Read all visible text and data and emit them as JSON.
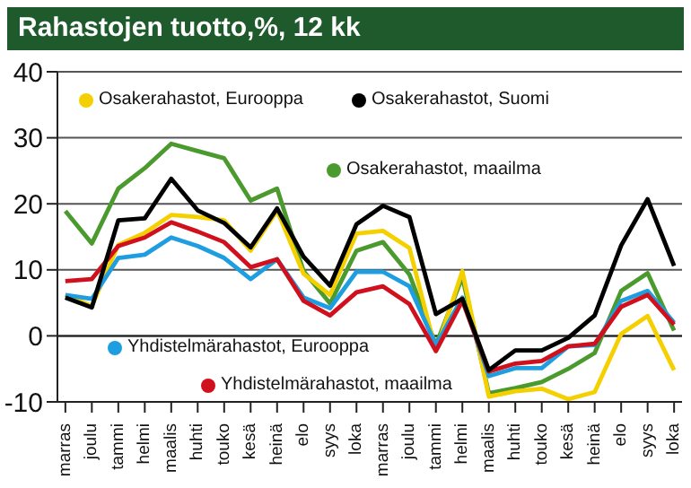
{
  "chart_data": {
    "type": "line",
    "title": "Rahastojen tuotto,%, 12 kk",
    "categories": [
      "marras",
      "joulu",
      "tammi",
      "helmi",
      "maalis",
      "huhti",
      "touko",
      "kesä",
      "heinä",
      "elo",
      "syys",
      "loka",
      "marras",
      "joulu",
      "tammi",
      "helmi",
      "maalis",
      "huhti",
      "touko",
      "kesä",
      "heinä",
      "elo",
      "syys",
      "loka"
    ],
    "series": [
      {
        "name": "Osakerahastot, Eurooppa",
        "color": "#f5d000",
        "values": [
          6.2,
          4.5,
          13.8,
          15.6,
          18.3,
          18,
          17.5,
          12.9,
          19,
          9.4,
          6.2,
          15.5,
          15.9,
          13.3,
          -2.3,
          9.8,
          -9.2,
          -8.4,
          -8,
          -9.6,
          -8.5,
          0.3,
          3,
          -5.2
        ]
      },
      {
        "name": "Osakerahastot, Suomi",
        "color": "#000000",
        "values": [
          5.8,
          4.3,
          17.5,
          17.8,
          23.8,
          19,
          17.1,
          13.4,
          19.3,
          12,
          7.6,
          16.9,
          19.7,
          18,
          3.3,
          5.6,
          -5.2,
          -2.2,
          -2.2,
          -0.3,
          3.1,
          13.7,
          20.7,
          10.6
        ]
      },
      {
        "name": "Osakerahastot, maailma",
        "color": "#4a9a2e",
        "values": [
          18.9,
          14,
          22.3,
          25.4,
          29.1,
          28,
          26.9,
          20.5,
          22.3,
          9.8,
          4.9,
          12.9,
          14.2,
          9.3,
          -1.4,
          8.9,
          -8.7,
          -7.9,
          -7,
          -5,
          -2.6,
          6.8,
          9.5,
          0.8
        ]
      },
      {
        "name": "Yhdistelmärahastot, Eurooppa",
        "color": "#1e9ee0",
        "values": [
          6.2,
          5.6,
          11.8,
          12.3,
          14.9,
          13.6,
          11.8,
          8.6,
          11.6,
          5.8,
          4.2,
          9.7,
          9.7,
          7.5,
          -1.4,
          5.8,
          -6.1,
          -4.9,
          -4.9,
          -1.6,
          -1.4,
          5.3,
          6.8,
          2
        ]
      },
      {
        "name": "Yhdistelmärahastot, maailma",
        "color": "#d0101c",
        "values": [
          8.3,
          8.6,
          13.6,
          14.9,
          17.2,
          15.8,
          14.2,
          10.4,
          11.6,
          5.3,
          3.1,
          6.6,
          7.5,
          4.8,
          -2.3,
          5.3,
          -5.4,
          -4.2,
          -3.8,
          -1.6,
          -1.2,
          4.4,
          6.2,
          1.7
        ]
      }
    ],
    "ylim": [
      -10,
      40
    ],
    "yticks": [
      -10,
      0,
      10,
      20,
      30,
      40
    ],
    "grid": "y",
    "legend": "left"
  }
}
